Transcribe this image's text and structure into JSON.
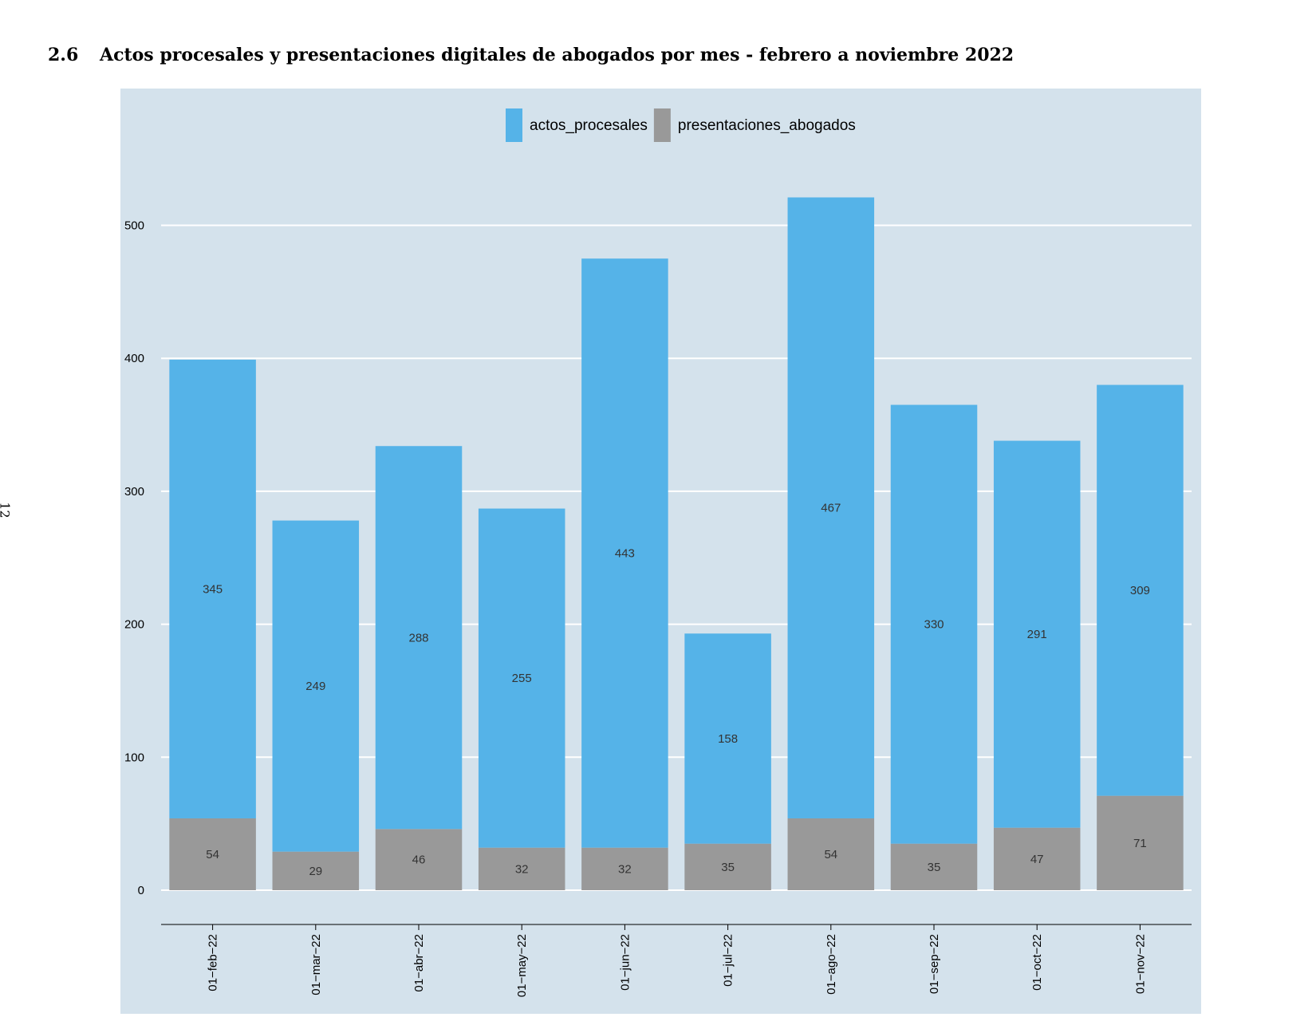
{
  "section": {
    "number": "2.6",
    "title": "Actos procesales y presentaciones digitales de abogados por mes - febrero a noviembre 2022"
  },
  "page_number": "12",
  "chart_data": {
    "type": "bar",
    "stacked": true,
    "categories": [
      "01−feb−22",
      "01−mar−22",
      "01−abr−22",
      "01−may−22",
      "01−jun−22",
      "01−jul−22",
      "01−ago−22",
      "01−sep−22",
      "01−oct−22",
      "01−nov−22"
    ],
    "series": [
      {
        "name": "presentaciones_abogados",
        "color": "#999999",
        "values": [
          54,
          29,
          46,
          32,
          32,
          35,
          54,
          35,
          47,
          71
        ]
      },
      {
        "name": "actos_procesales",
        "color": "#55b3e8",
        "values": [
          345,
          249,
          288,
          255,
          443,
          158,
          467,
          330,
          291,
          309
        ]
      }
    ],
    "legend_order": [
      "actos_procesales",
      "presentaciones_abogados"
    ],
    "legend_position": "top",
    "yticks": [
      0,
      100,
      200,
      300,
      400,
      500
    ],
    "ylim": [
      0,
      555
    ],
    "grid": true,
    "background": "#d4e2ec",
    "xlabel": "",
    "ylabel": "",
    "title": ""
  }
}
